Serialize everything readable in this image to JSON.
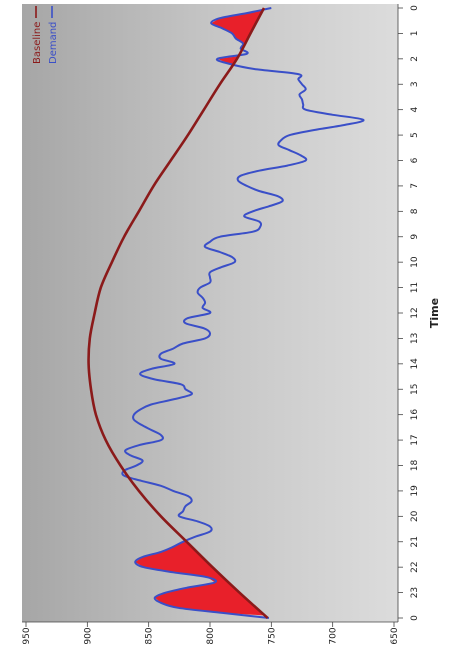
{
  "chart_data": {
    "type": "line",
    "title": "",
    "xlabel": "Time",
    "ylabel": "",
    "xlim": [
      0,
      24
    ],
    "ylim": [
      650,
      950
    ],
    "x_ticks": [
      "0",
      "1",
      "2",
      "3",
      "4",
      "5",
      "6",
      "7",
      "8",
      "9",
      "10",
      "11",
      "12",
      "13",
      "14",
      "15",
      "16",
      "17",
      "18",
      "19",
      "20",
      "21",
      "22",
      "23",
      "0"
    ],
    "y_ticks": [
      "650",
      "700",
      "750",
      "800",
      "850",
      "900",
      "950"
    ],
    "grid": false,
    "legend_position": "top-left",
    "colors": {
      "baseline": "#8b1a1a",
      "demand": "#3a4fc8",
      "fill": "#e8202a"
    },
    "series": [
      {
        "name": "Baseline",
        "x": [
          0,
          1,
          2,
          3,
          4,
          5,
          6,
          7,
          8,
          9,
          10,
          11,
          12,
          13,
          14,
          15,
          16,
          17,
          18,
          19,
          20,
          21,
          22,
          23,
          24
        ],
        "values": [
          756,
          767,
          778,
          792,
          805,
          818,
          832,
          846,
          858,
          870,
          880,
          889,
          894,
          898,
          899,
          897,
          893,
          885,
          873,
          858,
          840,
          819,
          798,
          776,
          753
        ]
      },
      {
        "name": "Demand",
        "x": [
          0,
          0.2,
          0.4,
          0.6,
          0.8,
          1.0,
          1.2,
          1.4,
          1.6,
          1.8,
          2.0,
          2.2,
          2.4,
          2.6,
          2.8,
          3.0,
          3.2,
          3.4,
          3.6,
          3.8,
          4.0,
          4.2,
          4.4,
          4.6,
          4.8,
          5.0,
          5.2,
          5.4,
          5.6,
          5.8,
          6.0,
          6.2,
          6.4,
          6.6,
          6.8,
          7.0,
          7.2,
          7.4,
          7.6,
          7.8,
          8.0,
          8.2,
          8.4,
          8.6,
          8.8,
          9.0,
          9.2,
          9.4,
          9.6,
          9.8,
          10.0,
          10.2,
          10.4,
          10.6,
          10.8,
          11.0,
          11.2,
          11.4,
          11.6,
          11.8,
          12.0,
          12.2,
          12.4,
          12.6,
          12.8,
          13.0,
          13.2,
          13.4,
          13.6,
          13.8,
          14.0,
          14.2,
          14.4,
          14.6,
          14.8,
          15.0,
          15.2,
          15.4,
          15.6,
          15.8,
          16.0,
          16.2,
          16.4,
          16.6,
          16.8,
          17.0,
          17.2,
          17.4,
          17.6,
          17.8,
          18.0,
          18.2,
          18.4,
          18.6,
          18.8,
          19.0,
          19.2,
          19.4,
          19.6,
          19.8,
          20.0,
          20.2,
          20.4,
          20.6,
          20.8,
          21.0,
          21.2,
          21.4,
          21.6,
          21.8,
          22.0,
          22.2,
          22.4,
          22.6,
          22.8,
          23.0,
          23.2,
          23.4,
          23.6,
          23.8,
          24.0
        ],
        "values": [
          750,
          770,
          792,
          799,
          790,
          782,
          779,
          773,
          775,
          770,
          794,
          784,
          764,
          728,
          728,
          725,
          722,
          727,
          725,
          724,
          722,
          700,
          675,
          690,
          715,
          735,
          742,
          744,
          735,
          726,
          722,
          737,
          760,
          775,
          777,
          770,
          760,
          745,
          741,
          752,
          765,
          772,
          760,
          759,
          765,
          792,
          800,
          804,
          792,
          782,
          780,
          791,
          800,
          800,
          800,
          808,
          810,
          806,
          804,
          806,
          800,
          818,
          820,
          805,
          800,
          804,
          822,
          830,
          840,
          840,
          829,
          848,
          857,
          846,
          824,
          820,
          815,
          830,
          848,
          857,
          862,
          862,
          856,
          848,
          840,
          840,
          858,
          869,
          865,
          855,
          860,
          870,
          870,
          856,
          840,
          830,
          818,
          815,
          820,
          822,
          825,
          810,
          800,
          800,
          812,
          822,
          830,
          840,
          855,
          861,
          854,
          830,
          802,
          796,
          818,
          836,
          845,
          840,
          826,
          790,
          752
        ]
      }
    ]
  }
}
